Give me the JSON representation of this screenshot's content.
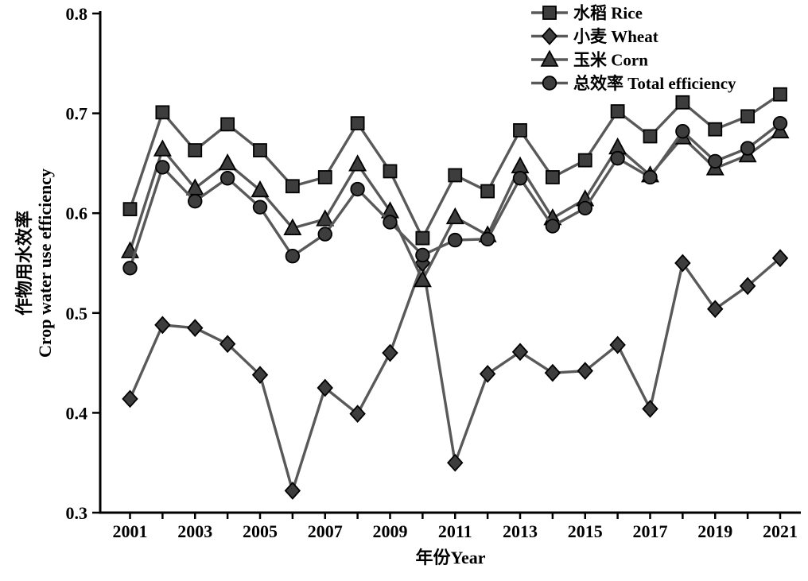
{
  "figure": {
    "background": "#ffffff"
  },
  "chart_data": {
    "type": "line",
    "title": "",
    "x": [
      2001,
      2002,
      2003,
      2004,
      2005,
      2006,
      2007,
      2008,
      2009,
      2010,
      2011,
      2012,
      2013,
      2014,
      2015,
      2016,
      2017,
      2018,
      2019,
      2020,
      2021
    ],
    "xlabel": "年份Year",
    "ylabel_zh": "作物用水效率",
    "ylabel_en": "Crop water use efficiency",
    "ylim": [
      0.3,
      0.8
    ],
    "yticks": [
      0.8,
      0.7,
      0.6,
      0.5,
      0.4,
      0.3
    ],
    "ytick_labels": [
      "0.8",
      "0.7",
      "0.6",
      "0.5",
      "0.4",
      "0.3"
    ],
    "xticks_labeled": [
      2001,
      2003,
      2005,
      2007,
      2009,
      2011,
      2013,
      2015,
      2017,
      2019,
      2021
    ],
    "grid": false,
    "legend_position": "top-right",
    "axis_color": "#000000",
    "line_color": "#595959",
    "marker_fill": "#3d3d3d",
    "marker_edge": "#000000",
    "series": [
      {
        "name": "水稻 Rice",
        "marker": "square",
        "values": [
          0.604,
          0.701,
          0.663,
          0.689,
          0.663,
          0.627,
          0.636,
          0.69,
          0.642,
          0.575,
          0.638,
          0.622,
          0.683,
          0.636,
          0.653,
          0.702,
          0.677,
          0.711,
          0.684,
          0.697,
          0.719
        ]
      },
      {
        "name": "小麦 Wheat",
        "marker": "diamond",
        "values": [
          0.414,
          0.488,
          0.485,
          0.469,
          0.438,
          0.322,
          0.425,
          0.399,
          0.46,
          0.55,
          0.35,
          0.439,
          0.461,
          0.44,
          0.442,
          0.468,
          0.404,
          0.55,
          0.504,
          0.527,
          0.555
        ]
      },
      {
        "name": "玉米 Corn",
        "marker": "triangle",
        "values": [
          0.562,
          0.664,
          0.625,
          0.65,
          0.623,
          0.585,
          0.594,
          0.649,
          0.602,
          0.533,
          0.596,
          0.578,
          0.647,
          0.595,
          0.614,
          0.666,
          0.638,
          0.676,
          0.645,
          0.658,
          0.682
        ]
      },
      {
        "name": "总效率 Total efficiency",
        "marker": "circle",
        "values": [
          0.545,
          0.646,
          0.612,
          0.635,
          0.606,
          0.557,
          0.579,
          0.624,
          0.591,
          0.558,
          0.573,
          0.574,
          0.635,
          0.587,
          0.605,
          0.655,
          0.636,
          0.682,
          0.652,
          0.665,
          0.69
        ]
      }
    ]
  }
}
